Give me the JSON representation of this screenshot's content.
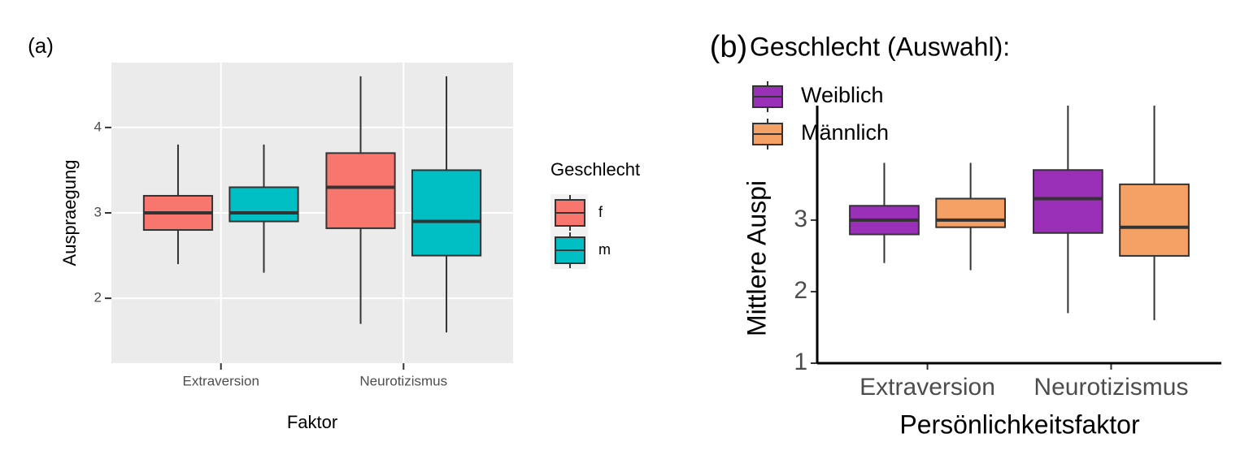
{
  "chart_data": [
    {
      "type": "box",
      "panel_label": "(a)",
      "x_label": "Faktor",
      "y_label": "Auspraegung",
      "categories": [
        "Extraversion",
        "Neurotizismus"
      ],
      "legend_title": "Geschlecht",
      "series": [
        {
          "name": "f",
          "color": "#f8766d",
          "min": [
            2.4,
            1.7
          ],
          "q1": [
            2.8,
            2.82
          ],
          "median": [
            3.0,
            3.3
          ],
          "q3": [
            3.2,
            3.7
          ],
          "max": [
            3.8,
            4.6
          ]
        },
        {
          "name": "m",
          "color": "#00bfc4",
          "min": [
            2.3,
            1.6
          ],
          "q1": [
            2.9,
            2.5
          ],
          "median": [
            3.0,
            2.9
          ],
          "q3": [
            3.3,
            3.5
          ],
          "max": [
            3.8,
            4.6
          ]
        }
      ],
      "ylim": [
        1.24,
        4.76
      ],
      "yticks": [
        2,
        3,
        4
      ],
      "grid": true
    },
    {
      "type": "box",
      "panel_label": "(b)",
      "x_label": "Persönlichkeitsfaktor",
      "y_label": "Mittlere Auspi",
      "categories": [
        "Extraversion",
        "Neurotizismus"
      ],
      "legend_title": "Geschlecht (Auswahl):",
      "series": [
        {
          "name": "Weiblich",
          "color": "#9b30b8",
          "min": [
            2.4,
            1.7
          ],
          "q1": [
            2.8,
            2.82
          ],
          "median": [
            3.0,
            3.3
          ],
          "q3": [
            3.2,
            3.7
          ],
          "max": [
            3.8,
            4.6
          ]
        },
        {
          "name": "Männlich",
          "color": "#f5a065",
          "min": [
            2.3,
            1.6
          ],
          "q1": [
            2.9,
            2.5
          ],
          "median": [
            3.0,
            2.9
          ],
          "q3": [
            3.3,
            3.5
          ],
          "max": [
            3.8,
            4.6
          ]
        }
      ],
      "ylim": [
        1,
        4.6
      ],
      "yticks": [
        1,
        2,
        3
      ],
      "grid": false
    }
  ]
}
